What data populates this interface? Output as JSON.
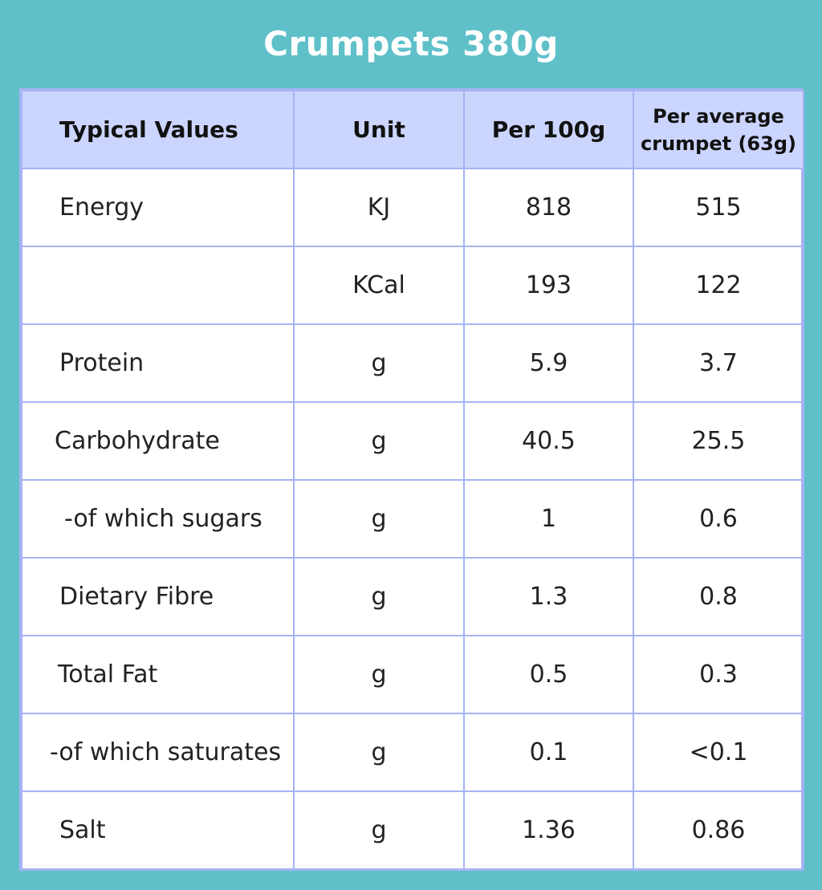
{
  "title": "Crumpets 380g",
  "table": {
    "headers": [
      "Typical Values",
      "Unit",
      "Per 100g",
      "Per average crumpet (63g)"
    ],
    "rows": [
      {
        "name": "Energy",
        "unit": "KJ",
        "per100": "818",
        "perCrumpet": "515"
      },
      {
        "name": "",
        "unit": "KCal",
        "per100": "193",
        "perCrumpet": "122"
      },
      {
        "name": "Protein",
        "unit": "g",
        "per100": "5.9",
        "perCrumpet": "3.7"
      },
      {
        "name": "Carbohydrate",
        "unit": "g",
        "per100": "40.5",
        "perCrumpet": "25.5"
      },
      {
        "name": "-of which sugars",
        "unit": "g",
        "per100": "1",
        "perCrumpet": "0.6"
      },
      {
        "name": "Dietary Fibre",
        "unit": "g",
        "per100": "1.3",
        "perCrumpet": "0.8"
      },
      {
        "name": "Total Fat",
        "unit": "g",
        "per100": "0.5",
        "perCrumpet": "0.3"
      },
      {
        "name": "-of which saturates",
        "unit": "g",
        "per100": "0.1",
        "perCrumpet": "<0.1"
      },
      {
        "name": "Salt",
        "unit": "g",
        "per100": "1.36",
        "perCrumpet": "0.86"
      }
    ]
  }
}
